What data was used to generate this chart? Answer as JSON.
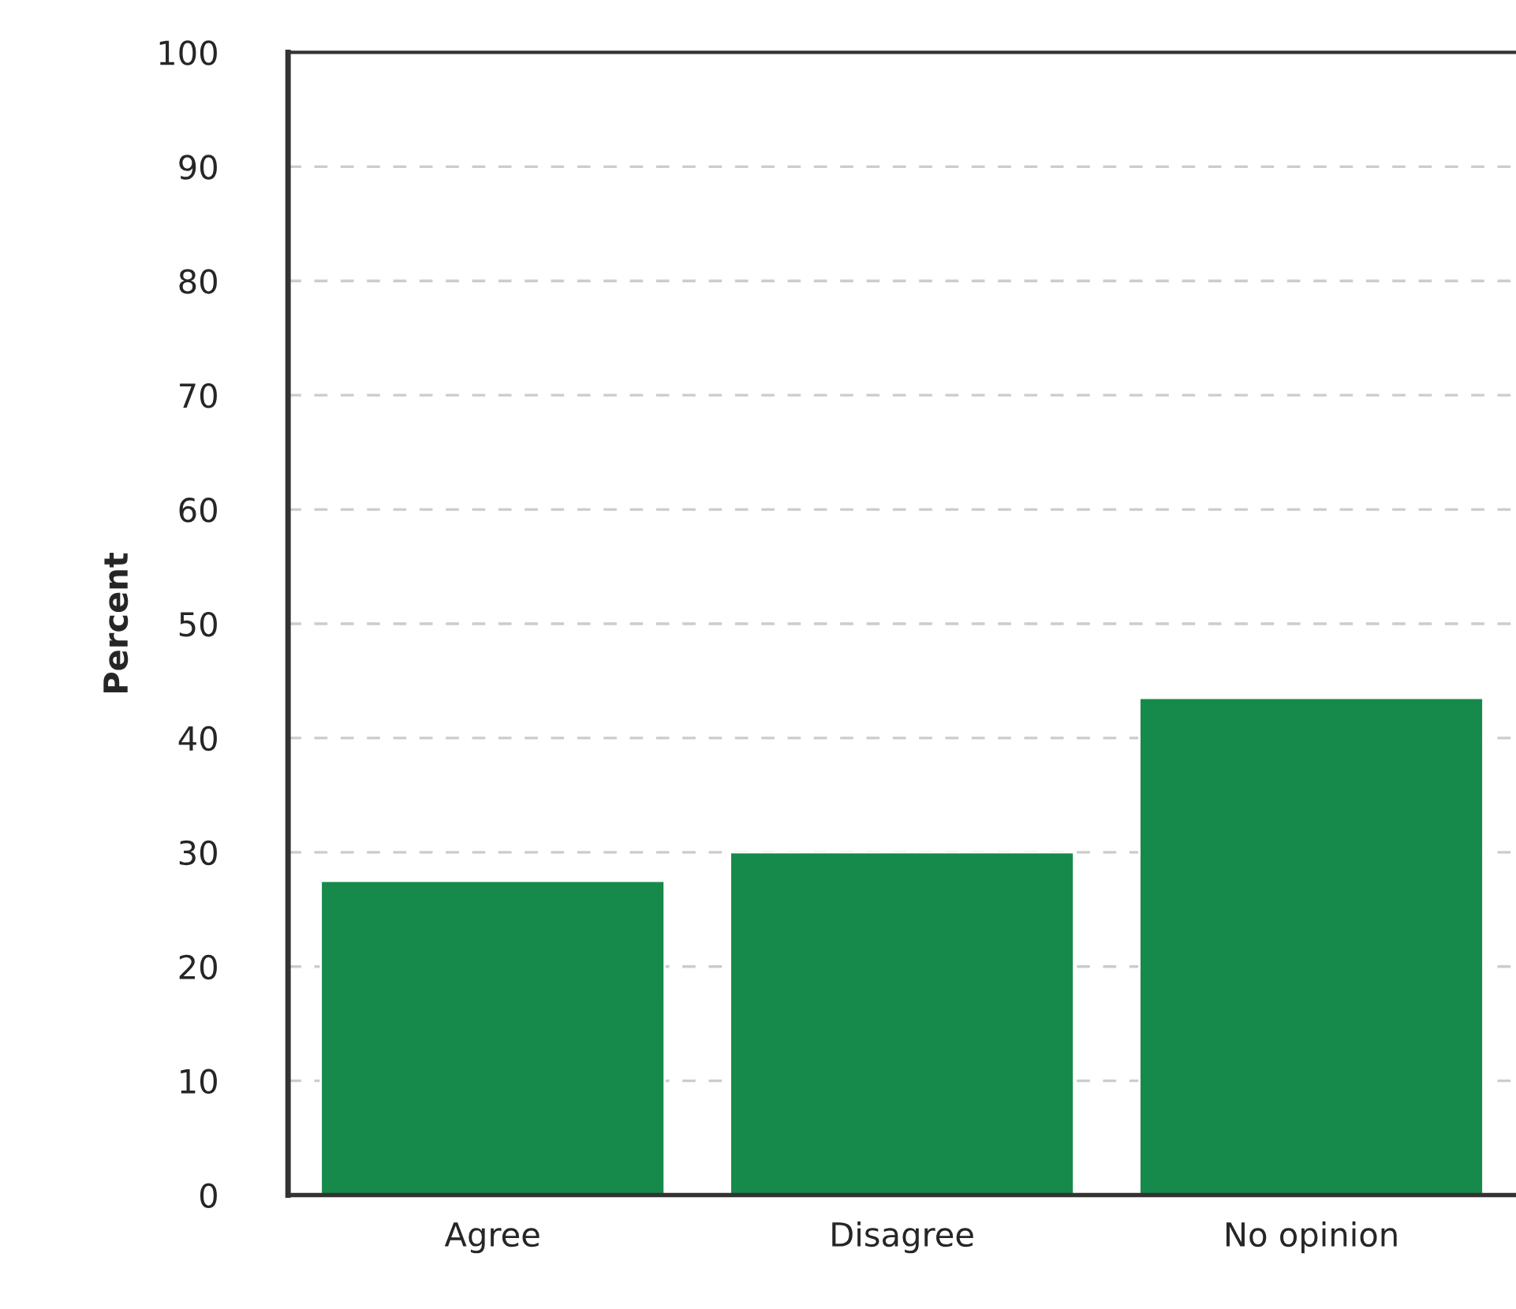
{
  "chart_data": {
    "type": "bar",
    "ylabel": "Percent",
    "categories": [
      "Agree",
      "Disagree",
      "No opinion"
    ],
    "values": [
      27.5,
      30,
      43.5
    ],
    "color": "#168a4a",
    "ylim": [
      0,
      100
    ],
    "yticks": [
      0,
      10,
      20,
      30,
      40,
      50,
      60,
      70,
      80,
      90,
      100
    ],
    "grid": "y"
  }
}
